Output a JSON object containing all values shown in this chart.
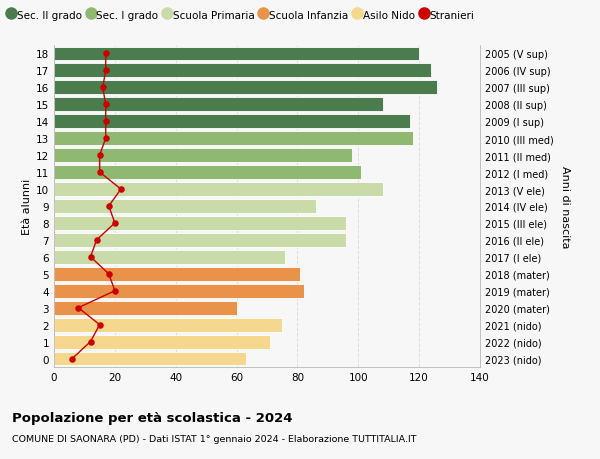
{
  "ages": [
    0,
    1,
    2,
    3,
    4,
    5,
    6,
    7,
    8,
    9,
    10,
    11,
    12,
    13,
    14,
    15,
    16,
    17,
    18
  ],
  "bar_values": [
    63,
    71,
    75,
    60,
    82,
    81,
    76,
    96,
    96,
    86,
    108,
    101,
    98,
    118,
    117,
    108,
    126,
    124,
    120
  ],
  "stranieri": [
    6,
    12,
    15,
    8,
    20,
    18,
    12,
    14,
    20,
    18,
    22,
    15,
    15,
    17,
    17,
    17,
    16,
    17,
    17
  ],
  "right_labels": [
    "2023 (nido)",
    "2022 (nido)",
    "2021 (nido)",
    "2020 (mater)",
    "2019 (mater)",
    "2018 (mater)",
    "2017 (I ele)",
    "2016 (II ele)",
    "2015 (III ele)",
    "2014 (IV ele)",
    "2013 (V ele)",
    "2012 (I med)",
    "2011 (II med)",
    "2010 (III med)",
    "2009 (I sup)",
    "2008 (II sup)",
    "2007 (III sup)",
    "2006 (IV sup)",
    "2005 (V sup)"
  ],
  "bar_colors": [
    "#f5d78e",
    "#f5d78e",
    "#f5d78e",
    "#e8924a",
    "#e8924a",
    "#e8924a",
    "#c8dba8",
    "#c8dba8",
    "#c8dba8",
    "#c8dba8",
    "#c8dba8",
    "#8fb870",
    "#8fb870",
    "#8fb870",
    "#4a7c4e",
    "#4a7c4e",
    "#4a7c4e",
    "#4a7c4e",
    "#4a7c4e"
  ],
  "legend_labels": [
    "Sec. II grado",
    "Sec. I grado",
    "Scuola Primaria",
    "Scuola Infanzia",
    "Asilo Nido",
    "Stranieri"
  ],
  "legend_colors": [
    "#4a7c4e",
    "#8fb870",
    "#c8dba8",
    "#e8924a",
    "#f5d78e",
    "#cc0000"
  ],
  "title": "Popolazione per età scolastica - 2024",
  "subtitle": "COMUNE DI SAONARA (PD) - Dati ISTAT 1° gennaio 2024 - Elaborazione TUTTITALIA.IT",
  "ylabel_left": "Età alunni",
  "ylabel_right": "Anni di nascita",
  "xlim": [
    0,
    140
  ],
  "bg_color": "#f7f7f7",
  "grid_color": "#dddddd",
  "stranieri_color": "#cc0000"
}
